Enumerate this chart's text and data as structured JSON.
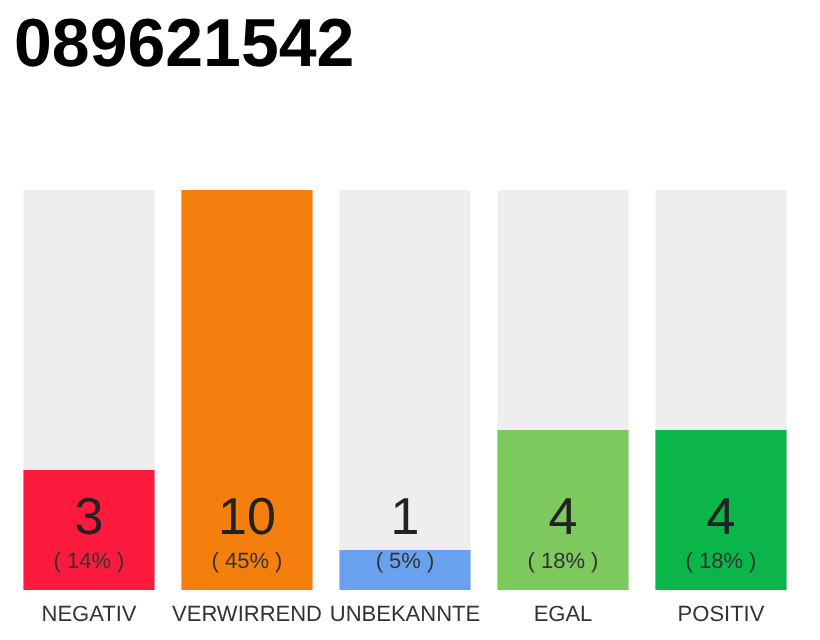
{
  "chart_data": {
    "type": "bar",
    "title": "089621542",
    "categories": [
      "NEGATIV",
      "VERWIRREND",
      "UNBEKANNTE",
      "EGAL",
      "POSITIV"
    ],
    "values": [
      3,
      10,
      1,
      4,
      4
    ],
    "colors": [
      "#fe1a3c",
      "#f47f0c",
      "#6aa1ef",
      "#7dc95e",
      "#0ab54a"
    ],
    "value_labels": [
      "3\n( 14% )",
      "10\n( 45% )",
      "1\n( 5% )",
      "4\n( 18% )",
      "4\n( 18% )"
    ]
  }
}
